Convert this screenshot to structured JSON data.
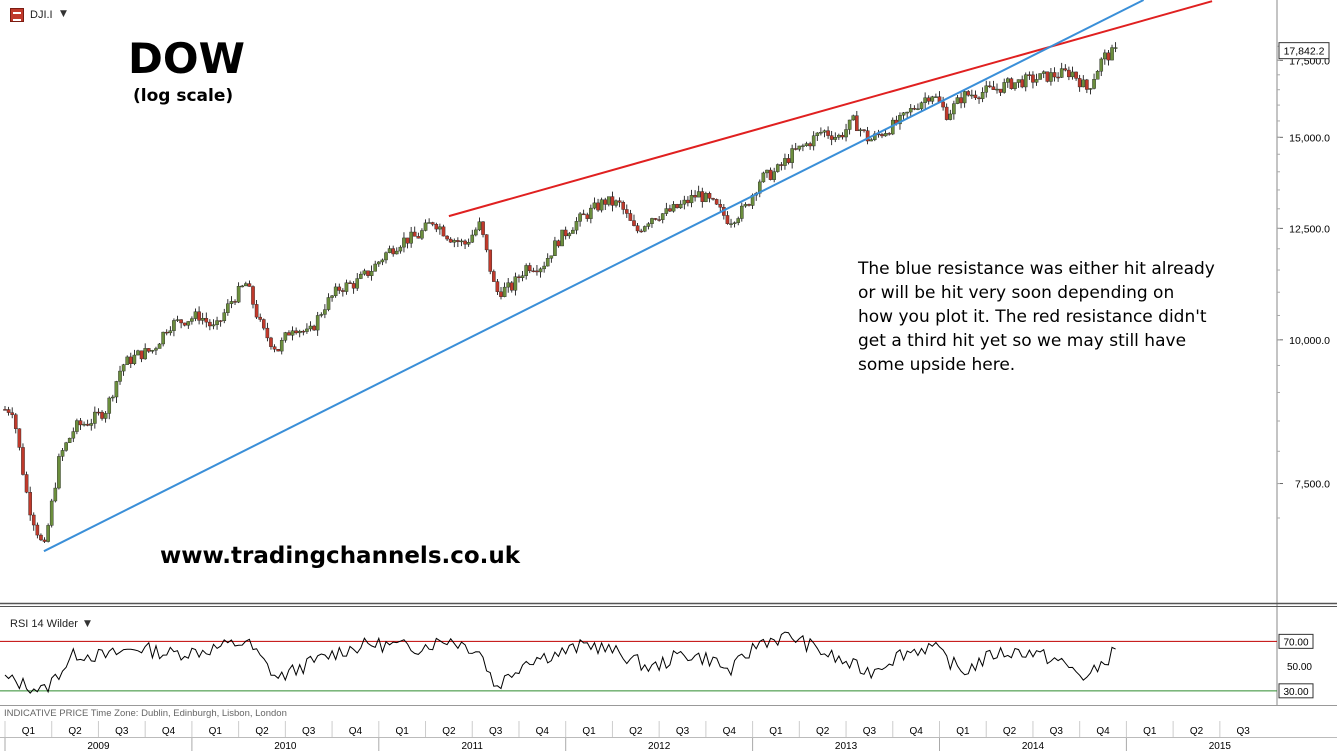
{
  "symbol": {
    "label": "DJI.I",
    "icon": "cfd-icon"
  },
  "annotations": {
    "title": "DOW",
    "subtitle": "(log scale)",
    "url": "www.tradingchannels.co.uk",
    "note_lines": [
      "The blue resistance was either hit already",
      "or will be hit very soon depending on",
      "how you plot it. The red resistance didn't",
      "get a third hit yet so we may still have",
      "some upside here."
    ]
  },
  "footer": {
    "info": "INDICATIVE PRICE    Time Zone: Dublin, Edinburgh, Lisbon, London"
  },
  "chart_data": [
    {
      "type": "candlestick",
      "scale": "log",
      "ylim": [
        6500,
        18300
      ],
      "yticks": [
        7500,
        10000,
        12500,
        15000,
        17500
      ],
      "ytick_labels": [
        "7,500.0",
        "10,000.0",
        "12,500.0",
        "15,000.0",
        "17,500.0"
      ],
      "last_price": 17842.2,
      "last_price_label": "17,842.2",
      "x_start": "2009-01",
      "x_end": "2015-09",
      "quarters": [
        "Q1",
        "Q2",
        "Q3",
        "Q4",
        "Q1",
        "Q2",
        "Q3",
        "Q4",
        "Q1",
        "Q2",
        "Q3",
        "Q4",
        "Q1",
        "Q2",
        "Q3",
        "Q4",
        "Q1",
        "Q2",
        "Q3",
        "Q4",
        "Q1",
        "Q2",
        "Q3",
        "Q4",
        "Q1",
        "Q2",
        "Q3"
      ],
      "years": [
        "2009",
        "2010",
        "2011",
        "2012",
        "2013",
        "2014",
        "2015"
      ],
      "weekly_close_approx": [
        [
          "2009-01",
          8700
        ],
        [
          "2009-02",
          7200
        ],
        [
          "2009-03",
          6550
        ],
        [
          "2009-04",
          7900
        ],
        [
          "2009-05",
          8400
        ],
        [
          "2009-06",
          8500
        ],
        [
          "2009-07",
          8700
        ],
        [
          "2009-08",
          9500
        ],
        [
          "2009-09",
          9700
        ],
        [
          "2009-10",
          9800
        ],
        [
          "2009-11",
          10300
        ],
        [
          "2009-12",
          10400
        ],
        [
          "2010-01",
          10500
        ],
        [
          "2010-02",
          10200
        ],
        [
          "2010-03",
          10800
        ],
        [
          "2010-04",
          11200
        ],
        [
          "2010-05",
          10200
        ],
        [
          "2010-06",
          9800
        ],
        [
          "2010-07",
          10300
        ],
        [
          "2010-08",
          10100
        ],
        [
          "2010-09",
          10700
        ],
        [
          "2010-10",
          11100
        ],
        [
          "2010-11",
          11200
        ],
        [
          "2010-12",
          11500
        ],
        [
          "2011-01",
          11900
        ],
        [
          "2011-02",
          12200
        ],
        [
          "2011-03",
          12300
        ],
        [
          "2011-04",
          12700
        ],
        [
          "2011-05",
          12300
        ],
        [
          "2011-06",
          12100
        ],
        [
          "2011-07",
          12600
        ],
        [
          "2011-08",
          11000
        ],
        [
          "2011-09",
          11100
        ],
        [
          "2011-10",
          11600
        ],
        [
          "2011-11",
          11600
        ],
        [
          "2011-12",
          12200
        ],
        [
          "2012-01",
          12600
        ],
        [
          "2012-02",
          12900
        ],
        [
          "2012-03",
          13200
        ],
        [
          "2012-04",
          13100
        ],
        [
          "2012-05",
          12400
        ],
        [
          "2012-06",
          12800
        ],
        [
          "2012-07",
          12900
        ],
        [
          "2012-08",
          13100
        ],
        [
          "2012-09",
          13400
        ],
        [
          "2012-10",
          13100
        ],
        [
          "2012-11",
          12700
        ],
        [
          "2012-12",
          13000
        ],
        [
          "2013-01",
          13800
        ],
        [
          "2013-02",
          14000
        ],
        [
          "2013-03",
          14500
        ],
        [
          "2013-04",
          14800
        ],
        [
          "2013-05",
          15200
        ],
        [
          "2013-06",
          15000
        ],
        [
          "2013-07",
          15500
        ],
        [
          "2013-08",
          14900
        ],
        [
          "2013-09",
          15200
        ],
        [
          "2013-10",
          15500
        ],
        [
          "2013-11",
          16000
        ],
        [
          "2013-12",
          16400
        ],
        [
          "2014-01",
          15700
        ],
        [
          "2014-02",
          16300
        ],
        [
          "2014-03",
          16400
        ],
        [
          "2014-04",
          16500
        ],
        [
          "2014-05",
          16700
        ],
        [
          "2014-06",
          16800
        ],
        [
          "2014-07",
          16900
        ],
        [
          "2014-08",
          17000
        ],
        [
          "2014-09",
          17100
        ],
        [
          "2014-10",
          16500
        ],
        [
          "2014-11",
          17600
        ],
        [
          "2014-12",
          17842.2
        ]
      ],
      "trendlines": [
        {
          "name": "red resistance",
          "color": "#e02020",
          "from": [
            "2011-05",
            12810
          ],
          "to": [
            "2015-06",
            19700
          ]
        },
        {
          "name": "blue resistance",
          "color": "#3a8fd8",
          "from": [
            "2009-03",
            6550
          ],
          "to": [
            "2015-04",
            20500
          ]
        }
      ]
    },
    {
      "type": "line",
      "title": "RSI 14 Wilder",
      "ylim": [
        25,
        80
      ],
      "levels": [
        70,
        30
      ],
      "level_labels": [
        "70.00",
        "30.00"
      ],
      "ytick_labels": [
        "50.00"
      ],
      "level_colors": [
        "#c00000",
        "#2e8b2e"
      ],
      "rsi_approx": [
        [
          "2009-01",
          38
        ],
        [
          "2009-03",
          30
        ],
        [
          "2009-05",
          60
        ],
        [
          "2009-07",
          58
        ],
        [
          "2009-09",
          65
        ],
        [
          "2009-11",
          60
        ],
        [
          "2010-01",
          62
        ],
        [
          "2010-04",
          70
        ],
        [
          "2010-06",
          40
        ],
        [
          "2010-08",
          52
        ],
        [
          "2010-10",
          62
        ],
        [
          "2010-12",
          68
        ],
        [
          "2011-03",
          65
        ],
        [
          "2011-05",
          72
        ],
        [
          "2011-07",
          62
        ],
        [
          "2011-08",
          33
        ],
        [
          "2011-10",
          55
        ],
        [
          "2011-12",
          60
        ],
        [
          "2012-02",
          68
        ],
        [
          "2012-04",
          60
        ],
        [
          "2012-06",
          48
        ],
        [
          "2012-08",
          60
        ],
        [
          "2012-10",
          55
        ],
        [
          "2012-11",
          45
        ],
        [
          "2013-01",
          70
        ],
        [
          "2013-03",
          74
        ],
        [
          "2013-06",
          55
        ],
        [
          "2013-08",
          45
        ],
        [
          "2013-10",
          60
        ],
        [
          "2013-12",
          66
        ],
        [
          "2014-02",
          45
        ],
        [
          "2014-04",
          60
        ],
        [
          "2014-06",
          62
        ],
        [
          "2014-08",
          55
        ],
        [
          "2014-10",
          40
        ],
        [
          "2014-12",
          65
        ]
      ]
    }
  ],
  "colors": {
    "grid": "#c8c8c8",
    "up_candle": "#6b8e3d",
    "down_candle": "#c0392b",
    "wick": "#000000",
    "axis_text": "#000000"
  }
}
